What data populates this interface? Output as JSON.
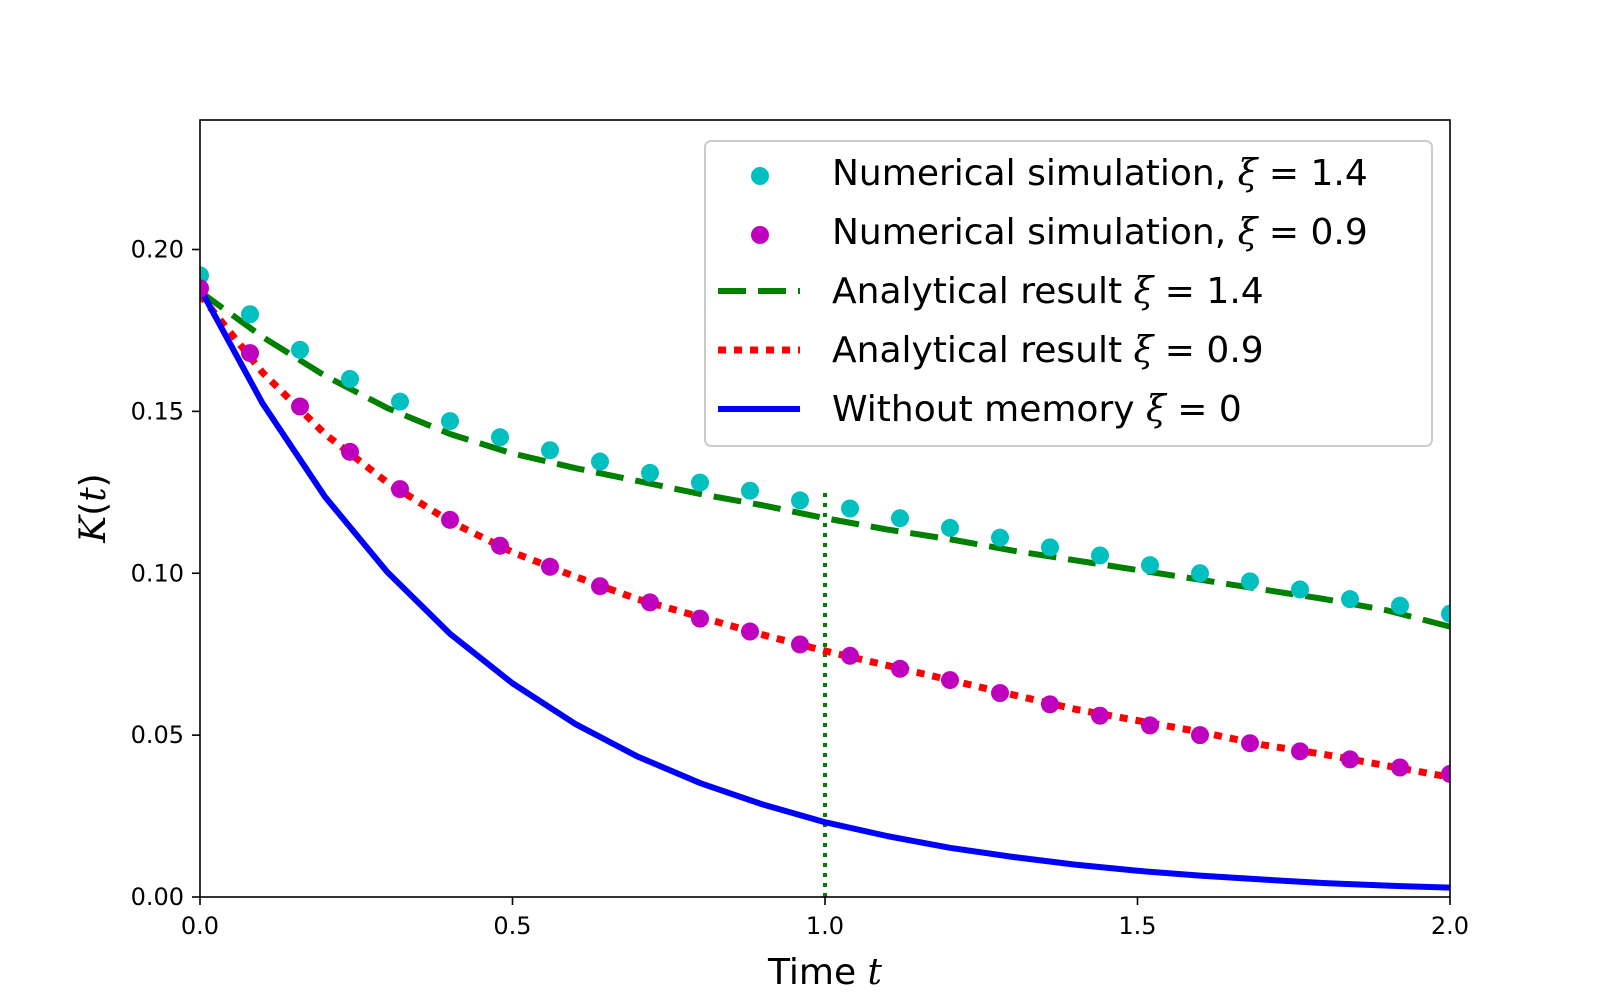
{
  "chart_data": {
    "type": "line",
    "title": "",
    "xlabel": "Time",
    "xlabel_var": "t",
    "ylabel_var": "K",
    "ylabel_arg": "t",
    "xlim": [
      0.0,
      2.0
    ],
    "ylim": [
      0.0,
      0.24
    ],
    "xticks": [
      0.0,
      0.5,
      1.0,
      1.5,
      2.0
    ],
    "xtick_labels": [
      "0.0",
      "0.5",
      "1.0",
      "1.5",
      "2.0"
    ],
    "yticks": [
      0.0,
      0.05,
      0.1,
      0.15,
      0.2
    ],
    "ytick_labels": [
      "0.00",
      "0.05",
      "0.10",
      "0.15",
      "0.20"
    ],
    "grid": false,
    "legend_position": "top-right",
    "vline": {
      "x": 1.0,
      "y_max": 0.125,
      "color": "#008000",
      "style": "dotted"
    },
    "series": [
      {
        "name": "Numerical simulation",
        "legend_prefix": "Numerical simulation, ",
        "xi": "1.4",
        "kind": "scatter",
        "color": "#00bfbf",
        "x": [
          0.0,
          0.08,
          0.16,
          0.24,
          0.32,
          0.4,
          0.48,
          0.56,
          0.64,
          0.72,
          0.8,
          0.88,
          0.96,
          1.04,
          1.12,
          1.2,
          1.28,
          1.36,
          1.44,
          1.52,
          1.6,
          1.68,
          1.76,
          1.84,
          1.92,
          2.0
        ],
        "y": [
          0.192,
          0.18,
          0.169,
          0.16,
          0.153,
          0.147,
          0.142,
          0.138,
          0.1345,
          0.131,
          0.128,
          0.1255,
          0.1225,
          0.12,
          0.117,
          0.114,
          0.111,
          0.108,
          0.1055,
          0.1025,
          0.1,
          0.0975,
          0.095,
          0.092,
          0.09,
          0.0875
        ]
      },
      {
        "name": "Numerical simulation",
        "legend_prefix": "Numerical simulation, ",
        "xi": "0.9",
        "kind": "scatter",
        "color": "#bf00bf",
        "x": [
          0.0,
          0.08,
          0.16,
          0.24,
          0.32,
          0.4,
          0.48,
          0.56,
          0.64,
          0.72,
          0.8,
          0.88,
          0.96,
          1.04,
          1.12,
          1.2,
          1.28,
          1.36,
          1.44,
          1.52,
          1.6,
          1.68,
          1.76,
          1.84,
          1.92,
          2.0
        ],
        "y": [
          0.188,
          0.168,
          0.1515,
          0.1375,
          0.126,
          0.1165,
          0.1085,
          0.102,
          0.096,
          0.091,
          0.086,
          0.082,
          0.078,
          0.0745,
          0.0705,
          0.067,
          0.063,
          0.0595,
          0.056,
          0.053,
          0.05,
          0.0475,
          0.045,
          0.0425,
          0.04,
          0.038
        ]
      },
      {
        "name": "Analytical result",
        "legend_prefix": "Analytical result ",
        "xi": "1.4",
        "kind": "line",
        "style": "dashed",
        "color": "#008000",
        "x": [
          0.0,
          0.1,
          0.2,
          0.3,
          0.4,
          0.5,
          0.6,
          0.7,
          0.8,
          0.9,
          1.0,
          1.1,
          1.2,
          1.3,
          1.4,
          1.5,
          1.6,
          1.7,
          1.8,
          1.9,
          2.0
        ],
        "y": [
          0.187,
          0.173,
          0.161,
          0.151,
          0.143,
          0.137,
          0.1325,
          0.1285,
          0.1245,
          0.121,
          0.117,
          0.1135,
          0.1105,
          0.107,
          0.104,
          0.101,
          0.098,
          0.095,
          0.092,
          0.0885,
          0.0835
        ]
      },
      {
        "name": "Analytical result",
        "legend_prefix": "Analytical result ",
        "xi": "0.9",
        "kind": "line",
        "style": "dotted",
        "color": "#ff0000",
        "x": [
          0.0,
          0.1,
          0.2,
          0.3,
          0.4,
          0.5,
          0.6,
          0.7,
          0.8,
          0.9,
          1.0,
          1.1,
          1.2,
          1.3,
          1.4,
          1.5,
          1.6,
          1.7,
          1.8,
          1.9,
          2.0
        ],
        "y": [
          0.186,
          0.162,
          0.143,
          0.128,
          0.116,
          0.1065,
          0.099,
          0.092,
          0.0865,
          0.081,
          0.076,
          0.0715,
          0.067,
          0.0625,
          0.058,
          0.0545,
          0.051,
          0.047,
          0.044,
          0.0405,
          0.037
        ]
      },
      {
        "name": "Without memory",
        "legend_prefix": "Without memory ",
        "xi": "0",
        "kind": "line",
        "style": "solid",
        "color": "#0000ff",
        "x": [
          0.0,
          0.1,
          0.2,
          0.3,
          0.4,
          0.5,
          0.6,
          0.7,
          0.8,
          0.9,
          1.0,
          1.1,
          1.2,
          1.3,
          1.4,
          1.5,
          1.6,
          1.7,
          1.8,
          1.9,
          2.0
        ],
        "y": [
          0.188,
          0.1525,
          0.1236,
          0.1003,
          0.0813,
          0.066,
          0.0535,
          0.0434,
          0.0352,
          0.0286,
          0.0231,
          0.0188,
          0.0152,
          0.0124,
          0.01,
          0.0081,
          0.0066,
          0.0054,
          0.0043,
          0.0035,
          0.0029
        ]
      }
    ]
  }
}
